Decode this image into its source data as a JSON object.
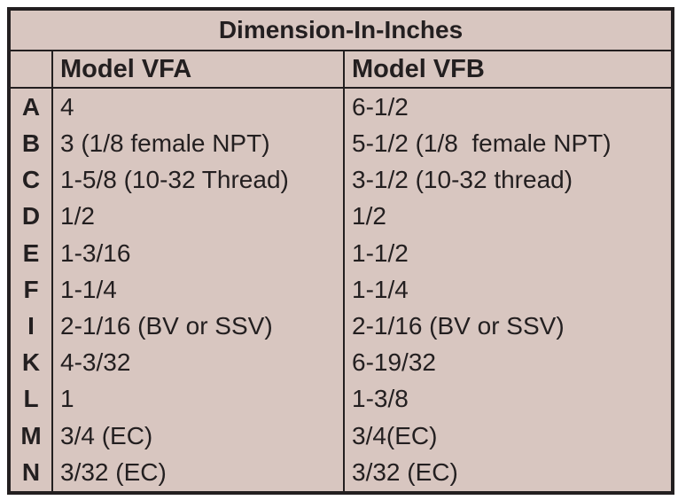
{
  "table": {
    "title": "Dimension-In-Inches",
    "columns": [
      "Model VFA",
      "Model VFB"
    ],
    "rows": [
      [
        "A",
        "4",
        "6-1/2"
      ],
      [
        "B",
        "3 (1/8 female NPT)",
        "5-1/2 (1/8  female NPT)"
      ],
      [
        "C",
        "1-5/8 (10-32 Thread)",
        "3-1/2 (10-32 thread)"
      ],
      [
        "D",
        "1/2",
        "1/2"
      ],
      [
        "E",
        "1-3/16",
        "1-1/2"
      ],
      [
        "F",
        "1-1/4",
        "1-1/4"
      ],
      [
        "I",
        "2-1/16 (BV or SSV)",
        "2-1/16 (BV or SSV)"
      ],
      [
        "K",
        "4-3/32",
        "6-19/32"
      ],
      [
        "L",
        "1",
        "1-3/8"
      ],
      [
        "M",
        "3/4 (EC)",
        "3/4(EC)"
      ],
      [
        "N",
        "3/32 (EC)",
        "3/32 (EC)"
      ]
    ]
  }
}
